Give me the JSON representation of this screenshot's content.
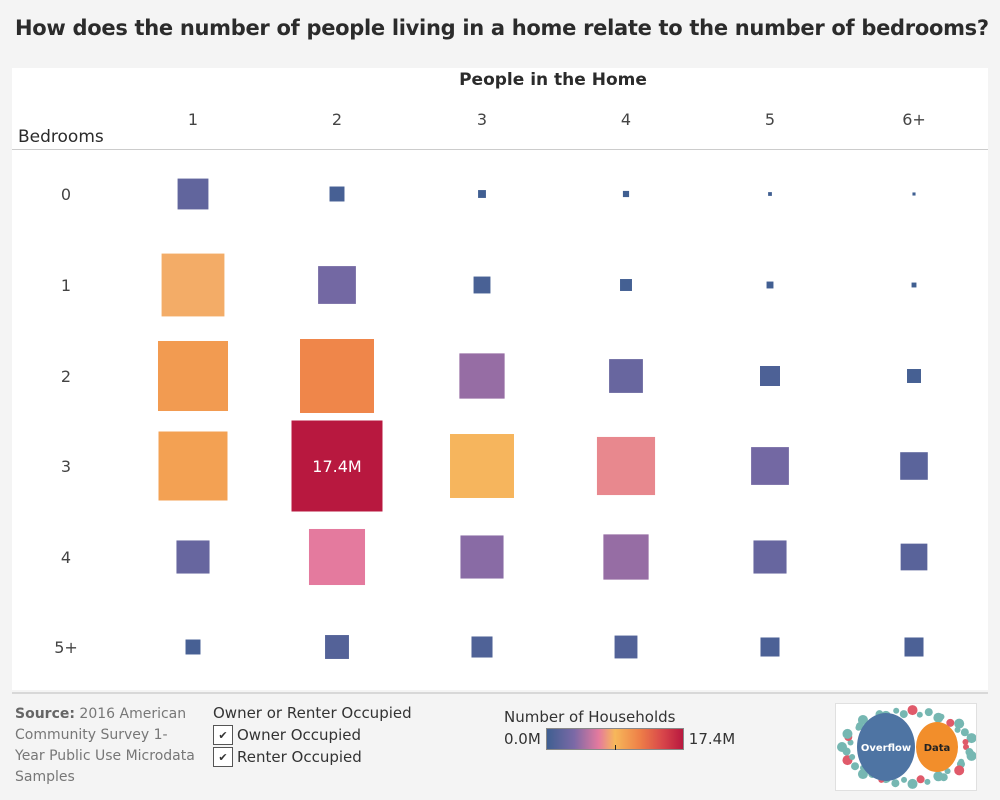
{
  "title": "How does the number of people living in a home relate to the number of bedrooms?",
  "chart_data": {
    "type": "heatmap",
    "encoding": "square size and color by number of households",
    "column_header": "People in the Home",
    "row_header": "Bedrooms",
    "columns": [
      "1",
      "2",
      "3",
      "4",
      "5",
      "6+"
    ],
    "rows": [
      "0",
      "1",
      "2",
      "3",
      "4",
      "5+"
    ],
    "values_millions": [
      [
        2.0,
        0.47,
        0.13,
        0.08,
        0.03,
        0.02
      ],
      [
        8.3,
        3.0,
        0.6,
        0.3,
        0.1,
        0.05
      ],
      [
        10.3,
        11.5,
        4.3,
        2.4,
        0.84,
        0.41
      ],
      [
        10.0,
        17.4,
        8.6,
        7.1,
        3.0,
        1.6
      ],
      [
        2.3,
        6.6,
        3.9,
        4.3,
        2.3,
        1.5
      ],
      [
        0.47,
        1.2,
        0.93,
        1.1,
        0.76,
        0.76
      ]
    ],
    "max_label": "17.4M",
    "color_range": [
      0,
      17.4
    ],
    "colors": [
      "#3f5f91",
      "#7b69a6",
      "#e47a9e",
      "#f7b85a",
      "#ee8048",
      "#d8464a",
      "#b8183f"
    ]
  },
  "source": {
    "label": "Source:",
    "text": "2016 American Community Survey 1-Year Public Use Microdata Samples"
  },
  "filter": {
    "title": "Owner or Renter Occupied",
    "options": [
      {
        "label": "Owner Occupied",
        "checked": true
      },
      {
        "label": "Renter Occupied",
        "checked": true
      }
    ],
    "check_glyph": "✔"
  },
  "legend": {
    "title": "Number of Households",
    "min": "0.0M",
    "max": "17.4M"
  },
  "logo": {
    "left": "Overflow",
    "right": "Data"
  }
}
